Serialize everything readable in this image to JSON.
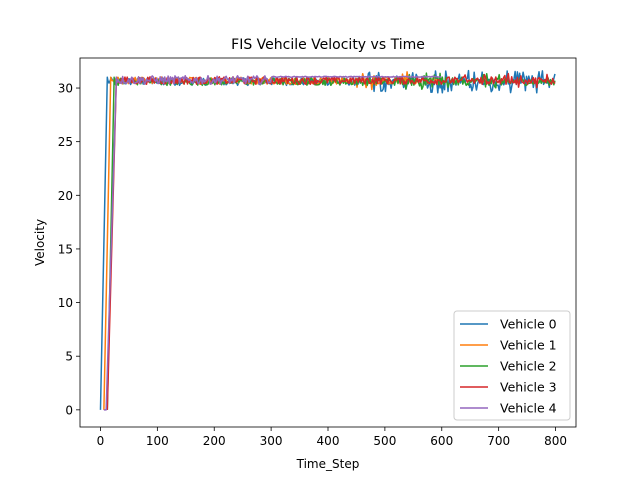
{
  "chart_data": {
    "type": "line",
    "title": "FIS Vehcile Velocity vs Time",
    "xlabel": "Time_Step",
    "ylabel": "Velocity",
    "xlim": [
      -36,
      836
    ],
    "ylim": [
      -1.6,
      32.8
    ],
    "xticks": [
      0,
      100,
      200,
      300,
      400,
      500,
      600,
      700,
      800
    ],
    "yticks": [
      0,
      5,
      10,
      15,
      20,
      25,
      30
    ],
    "legend_position": "lower right",
    "grid": false,
    "series": [
      {
        "name": "Vehicle 0",
        "color": "#1f77b4",
        "ramp": [
          [
            0,
            0
          ],
          [
            12,
            31
          ]
        ],
        "end": 800,
        "base": 30.6,
        "amp": 0.35,
        "spikes": [
          [
            460,
            800,
            0.7
          ]
        ],
        "flat_from": 999
      },
      {
        "name": "Vehicle 1",
        "color": "#ff7f0e",
        "ramp": [
          [
            6,
            0
          ],
          [
            18,
            31
          ]
        ],
        "end": 600,
        "base": 30.7,
        "amp": 0.35,
        "spikes": [
          [
            440,
            540,
            0.5
          ]
        ],
        "flat_from": 999
      },
      {
        "name": "Vehicle 2",
        "color": "#2ca02c",
        "ramp": [
          [
            12,
            0
          ],
          [
            24,
            31
          ]
        ],
        "end": 800,
        "base": 30.6,
        "amp": 0.35,
        "spikes": [
          [
            520,
            720,
            0.45
          ]
        ],
        "flat_from": 999
      },
      {
        "name": "Vehicle 3",
        "color": "#d62728",
        "ramp": [
          [
            12,
            0
          ],
          [
            28,
            31
          ]
        ],
        "end": 800,
        "base": 30.7,
        "amp": 0.35,
        "spikes": [
          [
            620,
            800,
            0.3
          ]
        ],
        "flat_from": 999
      },
      {
        "name": "Vehicle 4",
        "color": "#9467bd",
        "ramp": [
          [
            6,
            0
          ],
          [
            10,
            0
          ],
          [
            28,
            31
          ]
        ],
        "end": 600,
        "base": 30.75,
        "amp": 0.4,
        "spikes": [],
        "flat_from": 300
      }
    ]
  }
}
